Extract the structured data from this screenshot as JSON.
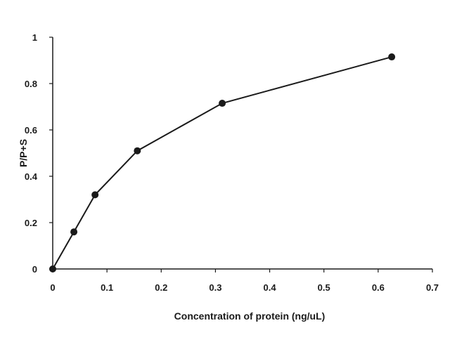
{
  "chart_data": {
    "type": "line",
    "title": "",
    "xlabel": "Concentration of protein (ng/uL)",
    "ylabel": "P/P+S",
    "xlim": [
      0,
      0.7
    ],
    "ylim": [
      0,
      1
    ],
    "x_ticks": [
      "0",
      "0.1",
      "0.2",
      "0.3",
      "0.4",
      "0.5",
      "0.6",
      "0.7"
    ],
    "y_ticks": [
      "0",
      "0.2",
      "0.4",
      "0.6",
      "0.8",
      "1"
    ],
    "grid": false,
    "legend": "none",
    "series": [
      {
        "x": [
          0,
          0.039,
          0.078,
          0.156,
          0.3125,
          0.625
        ],
        "y": [
          0,
          0.16,
          0.32,
          0.51,
          0.715,
          0.915
        ],
        "color": "#1a1a1a",
        "marker": "circle"
      }
    ]
  }
}
